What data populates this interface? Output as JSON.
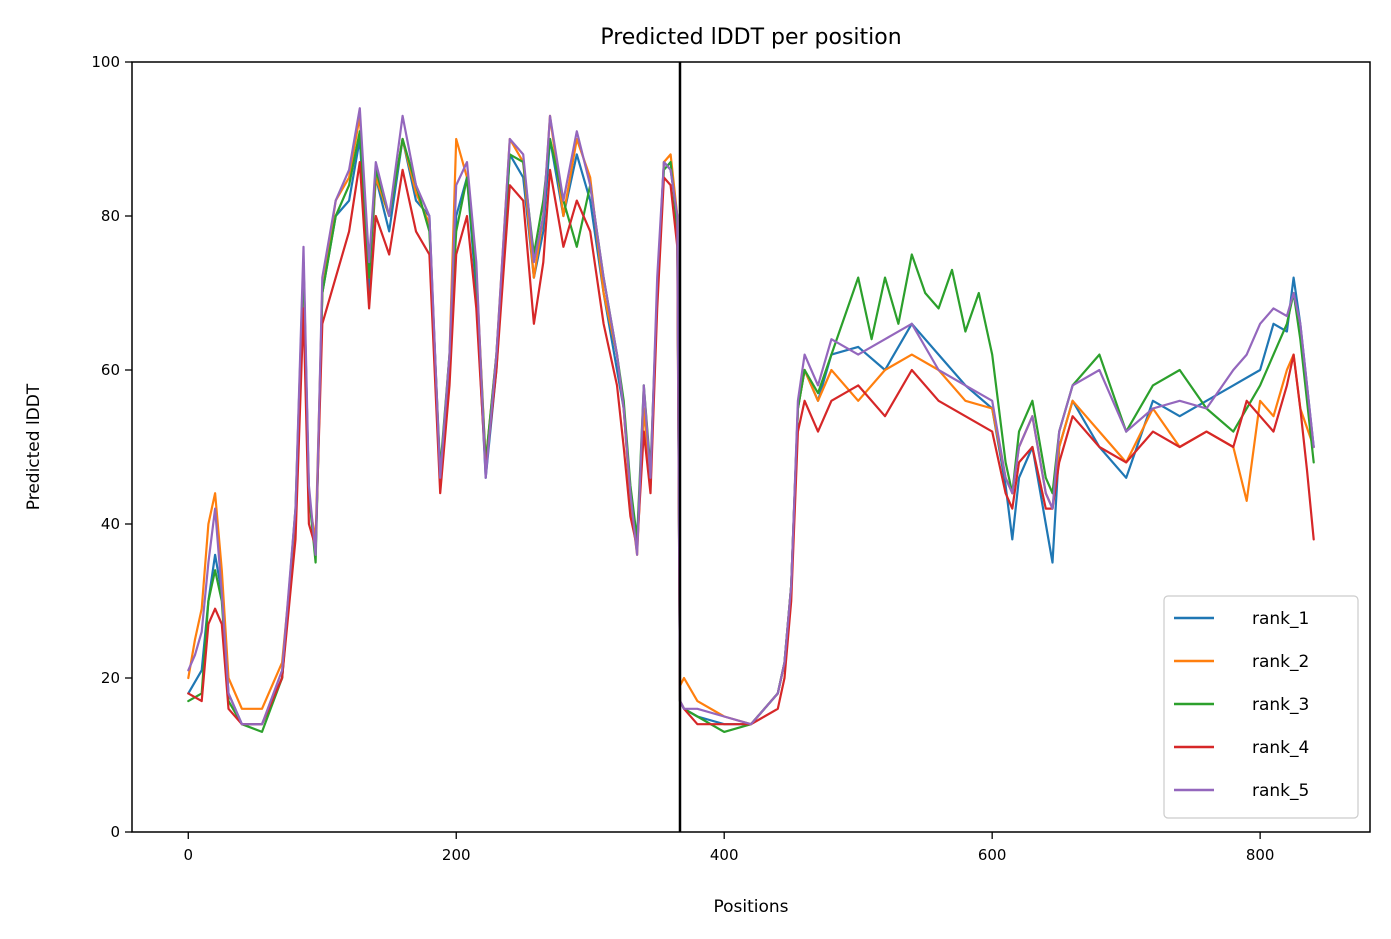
{
  "chart_data": {
    "type": "line",
    "title": "Predicted lDDT per position",
    "xlabel": "Positions",
    "ylabel": "Predicted lDDT",
    "xlim": [
      -42,
      882
    ],
    "ylim": [
      0,
      100
    ],
    "xticks": [
      0,
      200,
      400,
      600,
      800
    ],
    "yticks": [
      0,
      20,
      40,
      60,
      80,
      100
    ],
    "grid": false,
    "legend_position": "lower-right",
    "vertical_line": {
      "x": 367,
      "color": "#000000"
    },
    "series": [
      {
        "name": "rank_1",
        "color": "#1f77b4",
        "x": [
          0,
          10,
          15,
          20,
          25,
          30,
          40,
          55,
          70,
          80,
          86,
          90,
          95,
          100,
          110,
          120,
          128,
          135,
          140,
          150,
          160,
          170,
          180,
          188,
          195,
          200,
          208,
          215,
          222,
          230,
          240,
          250,
          258,
          265,
          270,
          280,
          290,
          300,
          310,
          320,
          325,
          330,
          335,
          340,
          345,
          350,
          355,
          360,
          365,
          367,
          370,
          380,
          400,
          420,
          430,
          440,
          445,
          450,
          455,
          460,
          470,
          480,
          500,
          520,
          540,
          560,
          580,
          600,
          610,
          615,
          620,
          630,
          640,
          645,
          650,
          660,
          680,
          700,
          720,
          740,
          760,
          780,
          800,
          810,
          820,
          825,
          830,
          840
        ],
        "values": [
          18,
          21,
          30,
          36,
          31,
          18,
          14,
          14,
          20,
          40,
          74,
          44,
          36,
          70,
          80,
          82,
          90,
          70,
          85,
          78,
          90,
          82,
          80,
          45,
          60,
          80,
          85,
          70,
          46,
          60,
          88,
          85,
          72,
          78,
          90,
          80,
          88,
          82,
          70,
          60,
          55,
          43,
          38,
          55,
          46,
          70,
          87,
          86,
          80,
          17,
          16,
          15,
          14,
          14,
          16,
          18,
          22,
          32,
          55,
          60,
          56,
          62,
          63,
          60,
          66,
          62,
          58,
          55,
          45,
          38,
          46,
          50,
          40,
          35,
          50,
          56,
          50,
          46,
          56,
          54,
          56,
          58,
          60,
          66,
          65,
          72,
          66,
          50
        ]
      },
      {
        "name": "rank_2",
        "color": "#ff7f0e",
        "x": [
          0,
          5,
          10,
          15,
          20,
          25,
          30,
          40,
          55,
          70,
          80,
          86,
          90,
          95,
          100,
          110,
          120,
          128,
          135,
          140,
          150,
          160,
          170,
          180,
          188,
          195,
          200,
          208,
          215,
          222,
          230,
          240,
          250,
          258,
          265,
          270,
          280,
          290,
          300,
          310,
          320,
          325,
          330,
          335,
          340,
          345,
          350,
          355,
          360,
          365,
          367,
          370,
          380,
          400,
          420,
          430,
          440,
          445,
          450,
          455,
          460,
          470,
          480,
          500,
          520,
          540,
          560,
          580,
          600,
          610,
          615,
          620,
          630,
          640,
          645,
          650,
          660,
          680,
          700,
          720,
          740,
          760,
          780,
          790,
          800,
          810,
          820,
          825,
          830,
          840
        ],
        "values": [
          20,
          25,
          29,
          40,
          44,
          34,
          20,
          16,
          16,
          22,
          40,
          74,
          43,
          38,
          70,
          82,
          85,
          93,
          72,
          85,
          80,
          90,
          83,
          79,
          46,
          62,
          90,
          85,
          73,
          48,
          62,
          90,
          87,
          72,
          80,
          93,
          80,
          90,
          85,
          70,
          62,
          55,
          43,
          36,
          55,
          45,
          70,
          87,
          88,
          80,
          19,
          20,
          17,
          15,
          14,
          16,
          18,
          22,
          32,
          55,
          60,
          56,
          60,
          56,
          60,
          62,
          60,
          56,
          55,
          46,
          44,
          50,
          54,
          44,
          42,
          50,
          56,
          52,
          48,
          55,
          50,
          52,
          50,
          43,
          56,
          54,
          60,
          62,
          55,
          50
        ]
      },
      {
        "name": "rank_3",
        "color": "#2ca02c",
        "x": [
          0,
          10,
          15,
          20,
          25,
          30,
          40,
          55,
          70,
          80,
          86,
          90,
          95,
          100,
          110,
          120,
          128,
          135,
          140,
          150,
          160,
          170,
          180,
          188,
          195,
          200,
          208,
          215,
          222,
          230,
          240,
          250,
          258,
          265,
          270,
          280,
          290,
          300,
          310,
          320,
          325,
          330,
          335,
          340,
          345,
          350,
          355,
          360,
          365,
          367,
          370,
          380,
          400,
          420,
          430,
          440,
          445,
          450,
          455,
          460,
          470,
          480,
          500,
          510,
          520,
          530,
          540,
          550,
          560,
          570,
          580,
          590,
          600,
          610,
          615,
          620,
          630,
          640,
          645,
          650,
          660,
          680,
          700,
          720,
          740,
          760,
          780,
          800,
          810,
          820,
          825,
          830,
          840
        ],
        "values": [
          17,
          18,
          30,
          34,
          30,
          17,
          14,
          13,
          20,
          42,
          74,
          44,
          35,
          70,
          80,
          84,
          91,
          72,
          86,
          80,
          90,
          84,
          78,
          47,
          62,
          78,
          85,
          72,
          48,
          62,
          88,
          87,
          75,
          82,
          90,
          82,
          76,
          84,
          72,
          62,
          56,
          45,
          38,
          58,
          47,
          70,
          86,
          87,
          78,
          17,
          16,
          15,
          13,
          14,
          16,
          18,
          22,
          32,
          55,
          60,
          57,
          62,
          72,
          64,
          72,
          66,
          75,
          70,
          68,
          73,
          65,
          70,
          62,
          48,
          44,
          52,
          56,
          46,
          44,
          52,
          58,
          62,
          52,
          58,
          60,
          55,
          52,
          58,
          62,
          66,
          70,
          64,
          48
        ]
      },
      {
        "name": "rank_4",
        "color": "#d62728",
        "x": [
          0,
          10,
          15,
          20,
          25,
          30,
          40,
          55,
          70,
          80,
          86,
          90,
          95,
          100,
          110,
          120,
          128,
          135,
          140,
          150,
          160,
          170,
          180,
          188,
          195,
          200,
          208,
          215,
          222,
          230,
          240,
          250,
          258,
          265,
          270,
          280,
          290,
          300,
          310,
          320,
          325,
          330,
          335,
          340,
          345,
          350,
          355,
          360,
          365,
          367,
          370,
          380,
          400,
          420,
          430,
          440,
          445,
          450,
          455,
          460,
          470,
          480,
          500,
          520,
          540,
          560,
          580,
          600,
          610,
          615,
          620,
          630,
          640,
          645,
          650,
          660,
          680,
          700,
          720,
          740,
          760,
          780,
          790,
          800,
          810,
          820,
          825,
          830,
          835,
          840
        ],
        "values": [
          18,
          17,
          27,
          29,
          27,
          16,
          14,
          14,
          20,
          38,
          68,
          40,
          37,
          66,
          72,
          78,
          87,
          68,
          80,
          75,
          86,
          78,
          75,
          44,
          58,
          75,
          80,
          68,
          47,
          60,
          84,
          82,
          66,
          74,
          86,
          76,
          82,
          78,
          66,
          58,
          50,
          41,
          37,
          52,
          44,
          68,
          85,
          84,
          76,
          17,
          16,
          14,
          14,
          14,
          15,
          16,
          20,
          30,
          52,
          56,
          52,
          56,
          58,
          54,
          60,
          56,
          54,
          52,
          44,
          42,
          48,
          50,
          42,
          42,
          48,
          54,
          50,
          48,
          52,
          50,
          52,
          50,
          56,
          54,
          52,
          58,
          62,
          55,
          47,
          38
        ]
      },
      {
        "name": "rank_5",
        "color": "#9467bd",
        "x": [
          0,
          5,
          10,
          15,
          20,
          25,
          30,
          40,
          55,
          70,
          80,
          86,
          90,
          95,
          100,
          110,
          120,
          128,
          135,
          140,
          150,
          160,
          170,
          180,
          188,
          195,
          200,
          208,
          215,
          222,
          230,
          240,
          250,
          258,
          265,
          270,
          280,
          290,
          300,
          310,
          320,
          325,
          330,
          335,
          340,
          345,
          350,
          355,
          360,
          365,
          367,
          370,
          380,
          400,
          420,
          430,
          440,
          445,
          450,
          455,
          460,
          470,
          480,
          500,
          520,
          540,
          560,
          580,
          600,
          610,
          615,
          620,
          630,
          640,
          645,
          650,
          660,
          680,
          700,
          720,
          740,
          760,
          780,
          790,
          800,
          810,
          820,
          825,
          830,
          840
        ],
        "values": [
          21,
          23,
          26,
          35,
          42,
          31,
          18,
          14,
          14,
          21,
          42,
          76,
          45,
          36,
          72,
          82,
          86,
          94,
          74,
          87,
          80,
          93,
          84,
          80,
          46,
          62,
          84,
          87,
          74,
          46,
          62,
          90,
          88,
          74,
          80,
          93,
          82,
          91,
          84,
          72,
          62,
          55,
          44,
          36,
          58,
          46,
          72,
          87,
          86,
          80,
          17,
          16,
          16,
          15,
          14,
          16,
          18,
          22,
          32,
          56,
          62,
          58,
          64,
          62,
          64,
          66,
          60,
          58,
          56,
          46,
          44,
          50,
          54,
          44,
          42,
          52,
          58,
          60,
          52,
          55,
          56,
          55,
          60,
          62,
          66,
          68,
          67,
          70,
          66,
          50
        ]
      }
    ]
  }
}
